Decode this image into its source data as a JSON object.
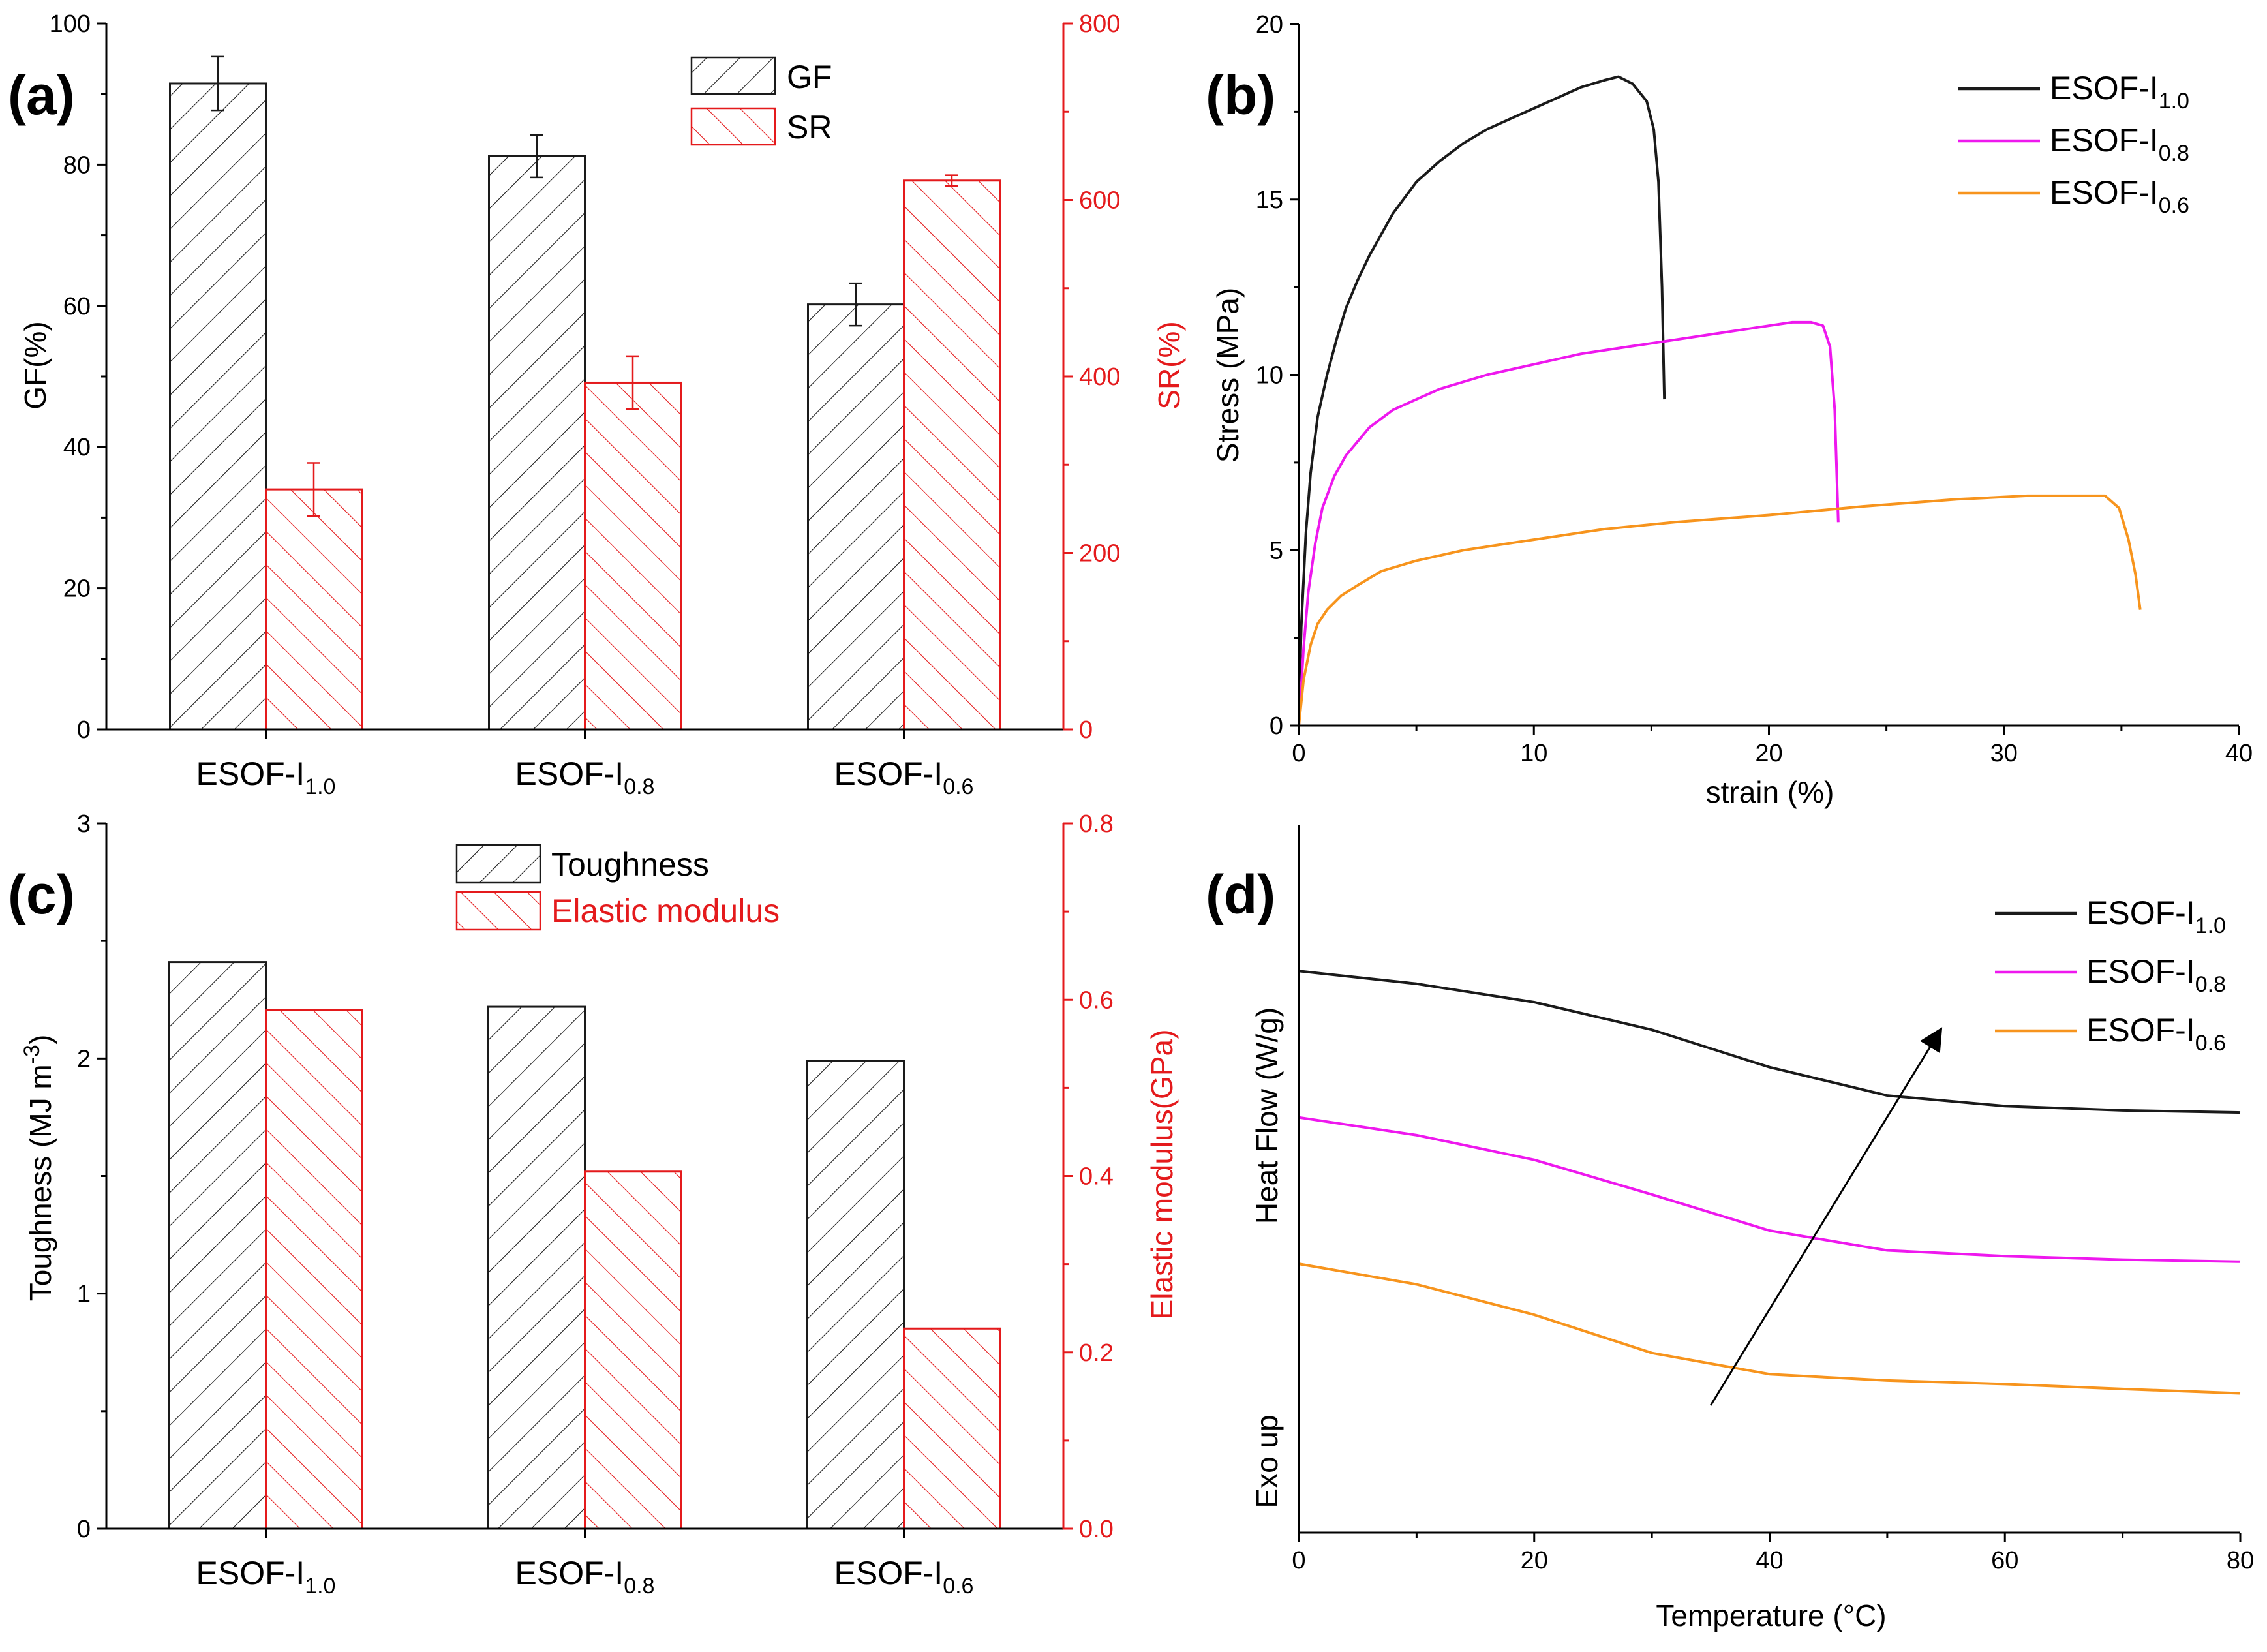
{
  "colors": {
    "black": "#1a1a1a",
    "red": "#e41a1c",
    "magenta": "#ee18ee",
    "orange": "#f7941d"
  },
  "panels": [
    {
      "id": "a",
      "label": "(a)"
    },
    {
      "id": "b",
      "label": "(b)"
    },
    {
      "id": "c",
      "label": "(c)"
    },
    {
      "id": "d",
      "label": "(d)"
    }
  ],
  "chart_data": [
    {
      "id": "a",
      "type": "bar",
      "categories": [
        {
          "base": "ESOF-I",
          "sub": "1.0"
        },
        {
          "base": "ESOF-I",
          "sub": "0.8"
        },
        {
          "base": "ESOF-I",
          "sub": "0.6"
        }
      ],
      "ylabel_left": "GF(%)",
      "ylabel_right": "SR(%)",
      "ylim_left": [
        0,
        100
      ],
      "ylim_right": [
        0,
        800
      ],
      "yticks_left": [
        0,
        20,
        40,
        60,
        80,
        100
      ],
      "yticks_right": [
        0,
        200,
        400,
        600,
        800
      ],
      "series": [
        {
          "name": "GF",
          "axis": "left",
          "color": "#1a1a1a",
          "values": [
            91.5,
            81.2,
            60.2
          ],
          "errors": [
            3.8,
            3.0,
            3.0
          ]
        },
        {
          "name": "SR",
          "axis": "right",
          "color": "#e41a1c",
          "values": [
            272,
            393,
            622
          ],
          "errors": [
            30,
            30,
            6
          ]
        }
      ],
      "legend": [
        "GF",
        "SR"
      ]
    },
    {
      "id": "b",
      "type": "line",
      "xlabel": "strain (%)",
      "ylabel": "Stress (MPa)",
      "xlim": [
        0,
        40
      ],
      "ylim": [
        0,
        20
      ],
      "xticks": [
        0,
        10,
        20,
        30,
        40
      ],
      "yticks": [
        0,
        5,
        10,
        15,
        20
      ],
      "series": [
        {
          "name": "ESOF-I",
          "sub": "1.0",
          "color": "#1a1a1a",
          "x": [
            0,
            0.1,
            0.3,
            0.5,
            0.8,
            1.2,
            1.6,
            2,
            2.5,
            3,
            4,
            5,
            6,
            7,
            8,
            9,
            10,
            11,
            12,
            13,
            13.6,
            14.2,
            14.8,
            15.1,
            15.3,
            15.45,
            15.55
          ],
          "y": [
            0,
            2.8,
            5.5,
            7.2,
            8.8,
            10.0,
            11.0,
            11.9,
            12.7,
            13.4,
            14.6,
            15.5,
            16.1,
            16.6,
            17.0,
            17.3,
            17.6,
            17.9,
            18.2,
            18.4,
            18.5,
            18.3,
            17.8,
            17.0,
            15.5,
            12.5,
            9.3
          ]
        },
        {
          "name": "ESOF-I",
          "sub": "0.8",
          "color": "#ee18ee",
          "x": [
            0,
            0.2,
            0.4,
            0.7,
            1.0,
            1.5,
            2,
            3,
            4,
            5,
            6,
            8,
            10,
            12,
            14,
            16,
            18,
            20,
            21,
            21.8,
            22.3,
            22.6,
            22.8,
            22.95
          ],
          "y": [
            0,
            2.2,
            3.8,
            5.2,
            6.2,
            7.1,
            7.7,
            8.5,
            9.0,
            9.3,
            9.6,
            10.0,
            10.3,
            10.6,
            10.8,
            11.0,
            11.2,
            11.4,
            11.5,
            11.5,
            11.4,
            10.8,
            9.0,
            5.8
          ]
        },
        {
          "name": "ESOF-I",
          "sub": "0.6",
          "color": "#f7941d",
          "x": [
            0,
            0.2,
            0.5,
            0.8,
            1.2,
            1.8,
            2.5,
            3.5,
            5,
            7,
            10,
            13,
            16,
            20,
            24,
            28,
            31,
            33,
            34.3,
            34.9,
            35.3,
            35.6,
            35.8
          ],
          "y": [
            0,
            1.3,
            2.3,
            2.9,
            3.3,
            3.7,
            4.0,
            4.4,
            4.7,
            5.0,
            5.3,
            5.6,
            5.8,
            6.0,
            6.25,
            6.45,
            6.55,
            6.55,
            6.55,
            6.2,
            5.3,
            4.3,
            3.3
          ]
        }
      ]
    },
    {
      "id": "c",
      "type": "bar",
      "categories": [
        {
          "base": "ESOF-I",
          "sub": "1.0"
        },
        {
          "base": "ESOF-I",
          "sub": "0.8"
        },
        {
          "base": "ESOF-I",
          "sub": "0.6"
        }
      ],
      "ylabel_left": {
        "main": "Toughness (MJ m",
        "sup": "-3",
        "tail": ")"
      },
      "ylabel_right": "Elastic modulus(GPa)",
      "ylim_left": [
        0,
        3
      ],
      "ylim_right": [
        0,
        0.8
      ],
      "yticks_left": [
        0,
        1,
        2,
        3
      ],
      "yticks_right": [
        "0.0",
        "0.2",
        "0.4",
        "0.6",
        "0.8"
      ],
      "series": [
        {
          "name": "Toughness",
          "axis": "left",
          "color": "#1a1a1a",
          "values": [
            2.41,
            2.22,
            1.99
          ]
        },
        {
          "name": "Elastic modulus",
          "axis": "right",
          "color": "#e41a1c",
          "values": [
            0.588,
            0.405,
            0.227
          ]
        }
      ],
      "legend": [
        "Toughness",
        "Elastic modulus"
      ]
    },
    {
      "id": "d",
      "type": "line",
      "xlabel": "Temperature (°C)",
      "ylabel": "Heat Flow (W/g)",
      "annotation": "Exo up",
      "xlim": [
        0,
        80
      ],
      "ylim": [
        0,
        1
      ],
      "xticks": [
        0,
        20,
        40,
        60,
        80
      ],
      "series": [
        {
          "name": "ESOF-I",
          "sub": "1.0",
          "color": "#1a1a1a",
          "x": [
            0,
            10,
            20,
            30,
            40,
            50,
            60,
            70,
            80
          ],
          "y": [
            0.794,
            0.776,
            0.75,
            0.711,
            0.658,
            0.618,
            0.603,
            0.597,
            0.594
          ]
        },
        {
          "name": "ESOF-I",
          "sub": "0.8",
          "color": "#ee18ee",
          "x": [
            0,
            10,
            20,
            30,
            40,
            50,
            60,
            70,
            80
          ],
          "y": [
            0.587,
            0.562,
            0.527,
            0.478,
            0.427,
            0.399,
            0.391,
            0.386,
            0.383
          ]
        },
        {
          "name": "ESOF-I",
          "sub": "0.6",
          "color": "#f7941d",
          "x": [
            0,
            10,
            20,
            30,
            40,
            50,
            60,
            70,
            80
          ],
          "y": [
            0.38,
            0.351,
            0.308,
            0.254,
            0.224,
            0.215,
            0.21,
            0.203,
            0.197
          ]
        }
      ],
      "arrow": {
        "from": [
          35,
          0.18
        ],
        "to": [
          54.5,
          0.71
        ]
      }
    }
  ]
}
